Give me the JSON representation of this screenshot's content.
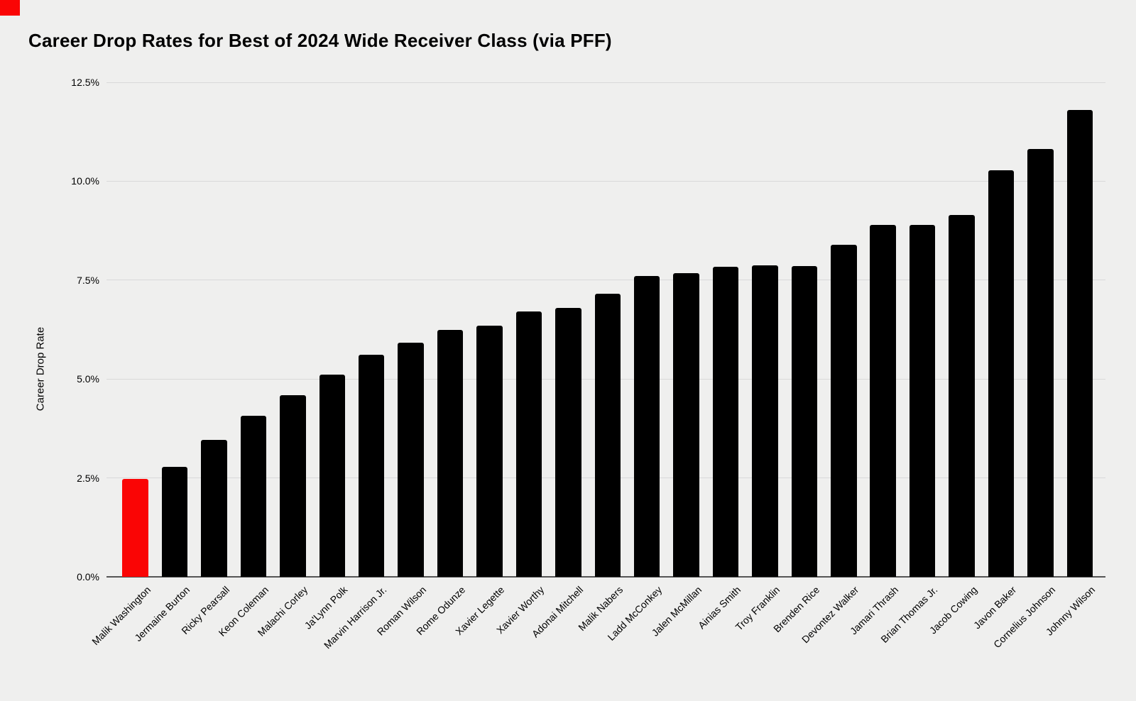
{
  "page": {
    "background": "#efefee"
  },
  "corner_marker": {
    "color": "#fa0505"
  },
  "chart_data": {
    "type": "bar",
    "title": "Career Drop Rates for Best of 2024 Wide Receiver Class (via PFF)",
    "ylabel": "Career Drop Rate",
    "xlabel": "",
    "ylim": [
      0,
      12.5
    ],
    "grid": "horizontal",
    "legend_position": "none",
    "yticks": [
      {
        "value": 0,
        "label": "0.0%"
      },
      {
        "value": 2.5,
        "label": "2.5%"
      },
      {
        "value": 5,
        "label": "5.0%"
      },
      {
        "value": 7.5,
        "label": "7.5%"
      },
      {
        "value": 10,
        "label": "10.0%"
      },
      {
        "value": 12.5,
        "label": "12.5%"
      }
    ],
    "categories": [
      "Malik Washington",
      "Jermaine Burton",
      "Ricky Pearsall",
      "Keon Coleman",
      "Malachi Corley",
      "Ja'Lynn Polk",
      "Marvin Harrison Jr.",
      "Roman Wilson",
      "Rome Odunze",
      "Xavier Legette",
      "Xavier Worthy",
      "Adonai Mitchell",
      "Malik Nabers",
      "Ladd McConkey",
      "Jalen McMillan",
      "Ainias Smith",
      "Troy Franklin",
      "Brenden Rice",
      "Devontez Walker",
      "Jamari Thrash",
      "Brian Thomas Jr.",
      "Jacob Cowing",
      "Javon Baker",
      "Cornelius Johnson",
      "Johnny Wilson"
    ],
    "values": [
      2.47,
      2.78,
      3.46,
      4.07,
      4.59,
      5.12,
      5.61,
      5.91,
      6.25,
      6.35,
      6.71,
      6.79,
      7.15,
      7.61,
      7.67,
      7.84,
      7.87,
      7.86,
      8.39,
      8.89,
      8.89,
      9.15,
      10.27,
      10.82,
      11.8
    ],
    "highlight_category": "Malik Washington",
    "bar_color": "#000000",
    "highlight_color": "#fa0505"
  }
}
